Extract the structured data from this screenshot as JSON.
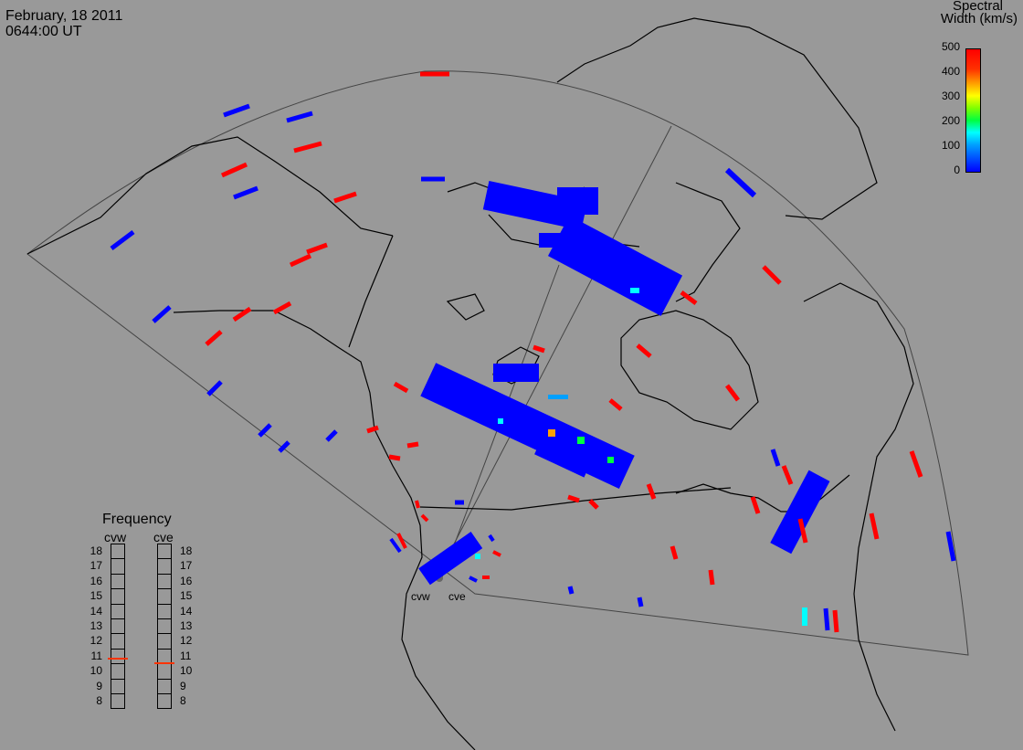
{
  "header": {
    "date": "February, 18 2011",
    "time": "0644:00 UT"
  },
  "colorbar": {
    "title_line1": "Spectral",
    "title_line2": "Width (km/s)",
    "ticks": [
      "500",
      "400",
      "300",
      "200",
      "100",
      "0"
    ],
    "range": [
      0,
      500
    ]
  },
  "frequency": {
    "title": "Frequency",
    "radars": [
      "cvw",
      "cve"
    ],
    "scale": [
      "18",
      "17",
      "16",
      "15",
      "14",
      "13",
      "12",
      "11",
      "10",
      "9",
      "8"
    ],
    "cvw_value": 10.9,
    "cve_value": 10.6,
    "marker_color": "#ff3300"
  },
  "sites": {
    "west": "cvw",
    "east": "cve"
  },
  "colors": {
    "background": "#999999",
    "low": "#0000ff",
    "high": "#ff0000",
    "cyan": "#00ffff",
    "green": "#00ff40",
    "orange": "#ffa000"
  }
}
